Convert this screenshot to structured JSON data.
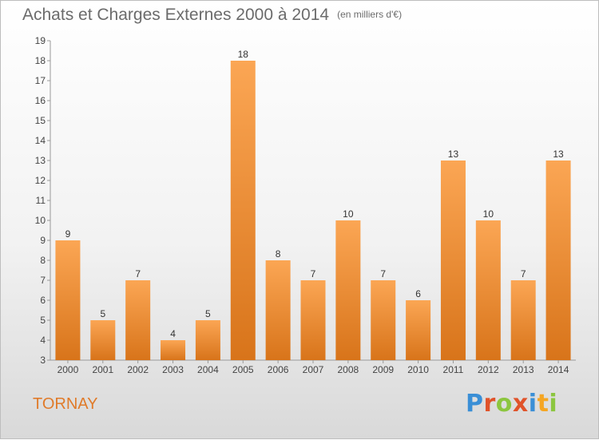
{
  "header": {
    "title": "Achats et Charges Externes 2000 à 2014",
    "unit": "(en milliers d'€)"
  },
  "footer": {
    "town": "TORNAY",
    "brand": {
      "letters": [
        "P",
        "r",
        "o",
        "x",
        "i",
        "t",
        "i"
      ],
      "colors": [
        "#3a8fd6",
        "#e0532a",
        "#8cc63f",
        "#e0532a",
        "#3a8fd6",
        "#f5a623",
        "#8cc63f"
      ]
    }
  },
  "colors": {
    "bar_light": "#fba654",
    "bar_dark": "#d8741a",
    "accent": "#e07b2a"
  },
  "chart_data": {
    "type": "bar",
    "title": "Achats et Charges Externes 2000 à 2014",
    "subtitle": "(en milliers d'€)",
    "categories": [
      "2000",
      "2001",
      "2002",
      "2003",
      "2004",
      "2005",
      "2006",
      "2007",
      "2008",
      "2009",
      "2010",
      "2011",
      "2012",
      "2013",
      "2014"
    ],
    "values": [
      9,
      5,
      7,
      4,
      5,
      18,
      8,
      7,
      10,
      7,
      6,
      13,
      10,
      7,
      13
    ],
    "ylim": [
      3,
      19
    ],
    "yticks": [
      3,
      4,
      5,
      6,
      7,
      8,
      9,
      10,
      11,
      12,
      13,
      14,
      15,
      16,
      17,
      18,
      19
    ],
    "grid": false,
    "legend": "none"
  }
}
